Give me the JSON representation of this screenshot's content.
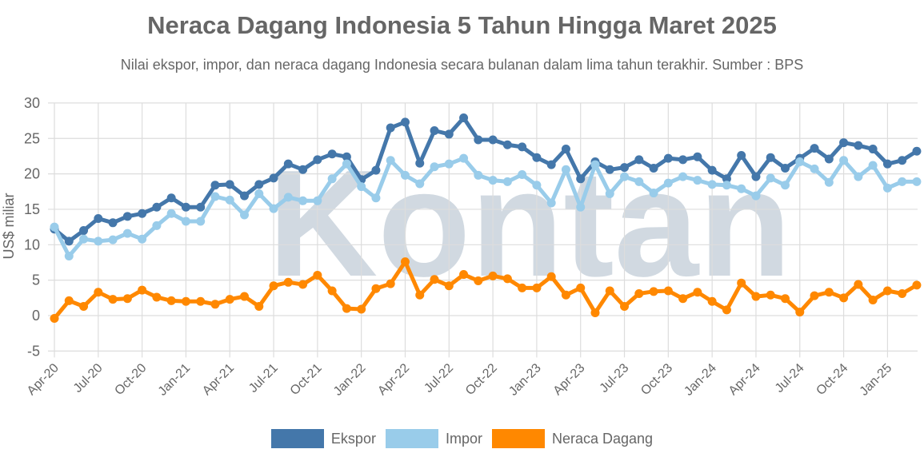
{
  "header": {
    "title": "Neraca Dagang Indonesia 5 Tahun Hingga Maret 2025",
    "subtitle": "Nilai ekspor, impor, dan neraca dagang Indonesia secara bulanan dalam lima tahun terakhir. Sumber : BPS"
  },
  "watermark": "Kontan",
  "legend": [
    {
      "label": "Ekspor",
      "color": "#4477aa"
    },
    {
      "label": "Impor",
      "color": "#99ccea"
    },
    {
      "label": "Neraca Dagang",
      "color": "#ff8800"
    }
  ],
  "chart_data": {
    "type": "line",
    "title": "Neraca Dagang Indonesia 5 Tahun Hingga Maret 2025",
    "subtitle": "Nilai ekspor, impor, dan neraca dagang Indonesia secara bulanan dalam lima tahun terakhir. Sumber : BPS",
    "xlabel": "",
    "ylabel": "US$ miliar",
    "ylim": [
      -5,
      30
    ],
    "yticks": [
      30,
      25,
      20,
      15,
      10,
      5,
      0,
      -5
    ],
    "xtick_labels": [
      "Apr-20",
      "Jul-20",
      "Oct-20",
      "Jan-21",
      "Apr-21",
      "Jul-21",
      "Oct-21",
      "Jan-22",
      "Apr-22",
      "Jul-22",
      "Oct-22",
      "Jan-23",
      "Apr-23",
      "Jul-23",
      "Oct-23",
      "Jan-24",
      "Apr-24",
      "Jul-24",
      "Oct-24",
      "Jan-25"
    ],
    "grid": true,
    "legend_position": "bottom",
    "x": [
      "Apr-20",
      "May-20",
      "Jun-20",
      "Jul-20",
      "Aug-20",
      "Sep-20",
      "Oct-20",
      "Nov-20",
      "Dec-20",
      "Jan-21",
      "Feb-21",
      "Mar-21",
      "Apr-21",
      "May-21",
      "Jun-21",
      "Jul-21",
      "Aug-21",
      "Sep-21",
      "Oct-21",
      "Nov-21",
      "Dec-21",
      "Jan-22",
      "Feb-22",
      "Mar-22",
      "Apr-22",
      "May-22",
      "Jun-22",
      "Jul-22",
      "Aug-22",
      "Sep-22",
      "Oct-22",
      "Nov-22",
      "Dec-22",
      "Jan-23",
      "Feb-23",
      "Mar-23",
      "Apr-23",
      "May-23",
      "Jun-23",
      "Jul-23",
      "Aug-23",
      "Sep-23",
      "Oct-23",
      "Nov-23",
      "Dec-23",
      "Jan-24",
      "Feb-24",
      "Mar-24",
      "Apr-24",
      "May-24",
      "Jun-24",
      "Jul-24",
      "Aug-24",
      "Sep-24",
      "Oct-24",
      "Nov-24",
      "Dec-24",
      "Jan-25",
      "Feb-25",
      "Mar-25"
    ],
    "series": [
      {
        "name": "Ekspor",
        "color": "#4477aa",
        "values": [
          12.2,
          10.5,
          12.0,
          13.7,
          13.1,
          14.0,
          14.4,
          15.3,
          16.6,
          15.3,
          15.3,
          18.4,
          18.5,
          16.9,
          18.5,
          19.4,
          21.4,
          20.6,
          22.0,
          22.8,
          22.4,
          19.2,
          20.5,
          26.5,
          27.3,
          21.5,
          26.1,
          25.6,
          27.9,
          24.8,
          24.8,
          24.1,
          23.8,
          22.3,
          21.3,
          23.5,
          19.3,
          21.7,
          20.6,
          20.9,
          22.0,
          20.8,
          22.2,
          22.0,
          22.4,
          20.5,
          19.3,
          22.6,
          19.6,
          22.3,
          20.8,
          22.2,
          23.6,
          22.1,
          24.4,
          24.0,
          23.5,
          21.4,
          21.9,
          23.2
        ]
      },
      {
        "name": "Impor",
        "color": "#99ccea",
        "values": [
          12.5,
          8.4,
          10.8,
          10.5,
          10.7,
          11.6,
          10.8,
          12.7,
          14.4,
          13.3,
          13.3,
          16.8,
          16.3,
          14.2,
          17.2,
          15.1,
          16.7,
          16.2,
          16.2,
          19.3,
          21.4,
          18.2,
          16.6,
          21.9,
          19.8,
          18.6,
          21.0,
          21.4,
          22.2,
          19.8,
          19.1,
          18.9,
          19.9,
          18.4,
          15.9,
          20.6,
          15.3,
          21.3,
          17.2,
          19.6,
          18.9,
          17.3,
          18.7,
          19.6,
          19.1,
          18.5,
          18.4,
          17.9,
          16.9,
          19.4,
          18.4,
          21.7,
          20.7,
          18.8,
          21.9,
          19.6,
          21.2,
          18.0,
          18.9,
          18.9
        ]
      },
      {
        "name": "Neraca Dagang",
        "color": "#ff8800",
        "values": [
          -0.4,
          2.1,
          1.3,
          3.3,
          2.3,
          2.4,
          3.6,
          2.6,
          2.1,
          2.0,
          2.0,
          1.6,
          2.3,
          2.7,
          1.3,
          4.2,
          4.7,
          4.4,
          5.7,
          3.5,
          1.0,
          0.9,
          3.8,
          4.5,
          7.6,
          2.9,
          5.1,
          4.2,
          5.8,
          4.9,
          5.6,
          5.2,
          3.9,
          3.9,
          5.5,
          2.9,
          3.9,
          0.4,
          3.5,
          1.3,
          3.1,
          3.4,
          3.5,
          2.4,
          3.3,
          2.0,
          0.8,
          4.6,
          2.7,
          2.9,
          2.4,
          0.5,
          2.8,
          3.3,
          2.5,
          4.4,
          2.2,
          3.5,
          3.1,
          4.3
        ]
      }
    ]
  }
}
